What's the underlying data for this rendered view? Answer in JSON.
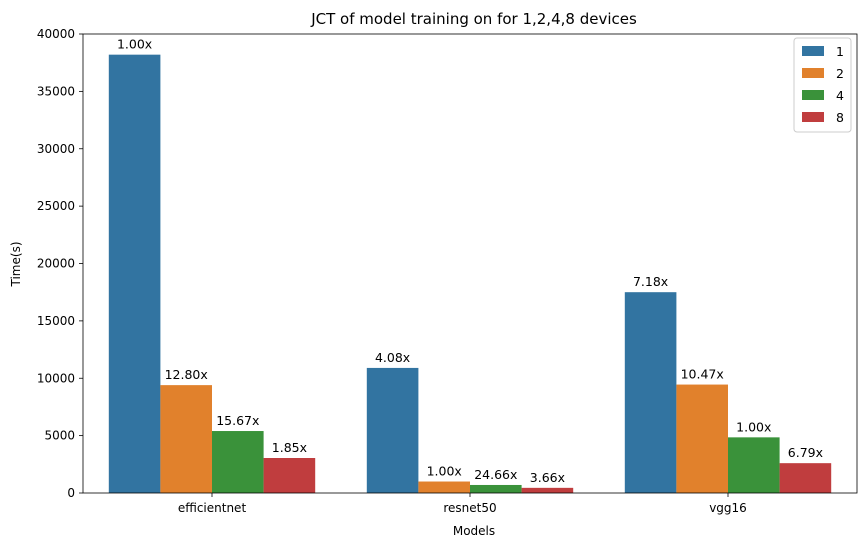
{
  "chart_data": {
    "type": "bar",
    "title": "JCT of model training on for 1,2,4,8 devices",
    "xlabel": "Models",
    "ylabel": "Time(s)",
    "categories": [
      "efficientnet",
      "resnet50",
      "vgg16"
    ],
    "ylim": [
      0,
      40000
    ],
    "yticks": [
      0,
      5000,
      10000,
      15000,
      20000,
      25000,
      30000,
      35000,
      40000
    ],
    "grid": false,
    "legend_position": "top-right",
    "series": [
      {
        "name": "1",
        "color": "#3274a1",
        "values": [
          38200,
          10900,
          17500
        ],
        "labels": [
          "1.00x",
          "4.08x",
          "7.18x"
        ]
      },
      {
        "name": "2",
        "color": "#e1812c",
        "values": [
          9400,
          1000,
          9450
        ],
        "labels": [
          "12.80x",
          "1.00x",
          "10.47x"
        ]
      },
      {
        "name": "4",
        "color": "#3a923a",
        "values": [
          5400,
          700,
          4850
        ],
        "labels": [
          "15.67x",
          "24.66x",
          "1.00x"
        ]
      },
      {
        "name": "8",
        "color": "#c03d3e",
        "values": [
          3050,
          450,
          2600
        ],
        "labels": [
          "1.85x",
          "3.66x",
          "6.79x"
        ]
      }
    ]
  }
}
